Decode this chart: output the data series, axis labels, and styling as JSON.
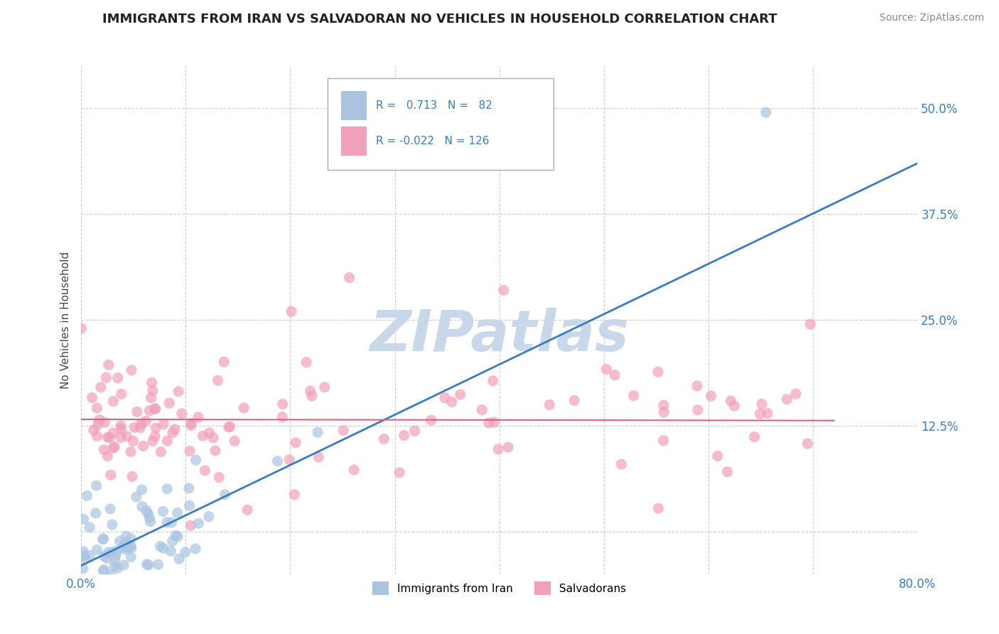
{
  "title": "IMMIGRANTS FROM IRAN VS SALVADORAN NO VEHICLES IN HOUSEHOLD CORRELATION CHART",
  "source_text": "Source: ZipAtlas.com",
  "ylabel": "No Vehicles in Household",
  "xlim": [
    0.0,
    0.8
  ],
  "ylim": [
    -0.05,
    0.55
  ],
  "xticks": [
    0.0,
    0.1,
    0.2,
    0.3,
    0.4,
    0.5,
    0.6,
    0.7,
    0.8
  ],
  "yticks": [
    0.0,
    0.125,
    0.25,
    0.375,
    0.5
  ],
  "iran_R": 0.713,
  "iran_N": 82,
  "salv_R": -0.022,
  "salv_N": 126,
  "iran_color": "#aac4e0",
  "iran_line_color": "#3a7cc4",
  "salv_color": "#f0a0b8",
  "salv_line_color": "#e06080",
  "watermark": "ZIPatlas",
  "watermark_color": "#c8d8ea",
  "legend_label_iran": "Immigrants from Iran",
  "legend_label_salv": "Salvadorans",
  "background_color": "#ffffff",
  "grid_color": "#cccccc"
}
